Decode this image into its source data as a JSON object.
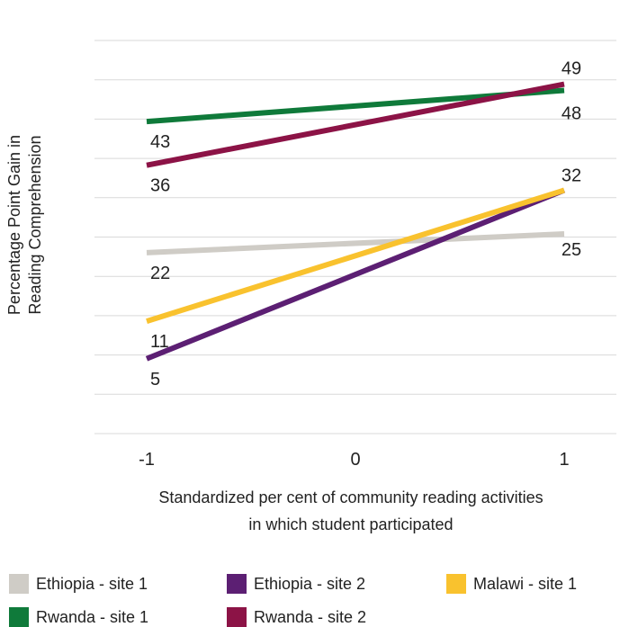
{
  "chart_data": {
    "type": "line",
    "ylabel_lines": [
      "Percentage Point Gain in",
      "Reading Comprehension"
    ],
    "xlabel_lines": [
      "Standardized per cent of community reading activities",
      "in which student participated"
    ],
    "x": [
      -1,
      1
    ],
    "x_ticks": [
      "-1",
      "0",
      "1"
    ],
    "ylim": [
      -7,
      56
    ],
    "grid": true,
    "legend_position": "bottom",
    "series": [
      {
        "name": "Ethiopia - site 1",
        "color": "#cfccc6",
        "values": [
          22,
          25
        ],
        "labels": [
          "22",
          "25"
        ]
      },
      {
        "name": "Ethiopia - site 2",
        "color": "#5c1f73",
        "values": [
          5,
          32
        ],
        "labels": [
          "5",
          ""
        ]
      },
      {
        "name": "Malawi - site 1",
        "color": "#f9c22e",
        "values": [
          11,
          32
        ],
        "labels": [
          "11",
          "32"
        ]
      },
      {
        "name": "Rwanda - site 1",
        "color": "#0f7a3a",
        "values": [
          43,
          48
        ],
        "labels": [
          "43",
          "48"
        ]
      },
      {
        "name": "Rwanda - site 2",
        "color": "#8c1346",
        "values": [
          36,
          49
        ],
        "labels": [
          "36",
          "49"
        ]
      }
    ]
  }
}
